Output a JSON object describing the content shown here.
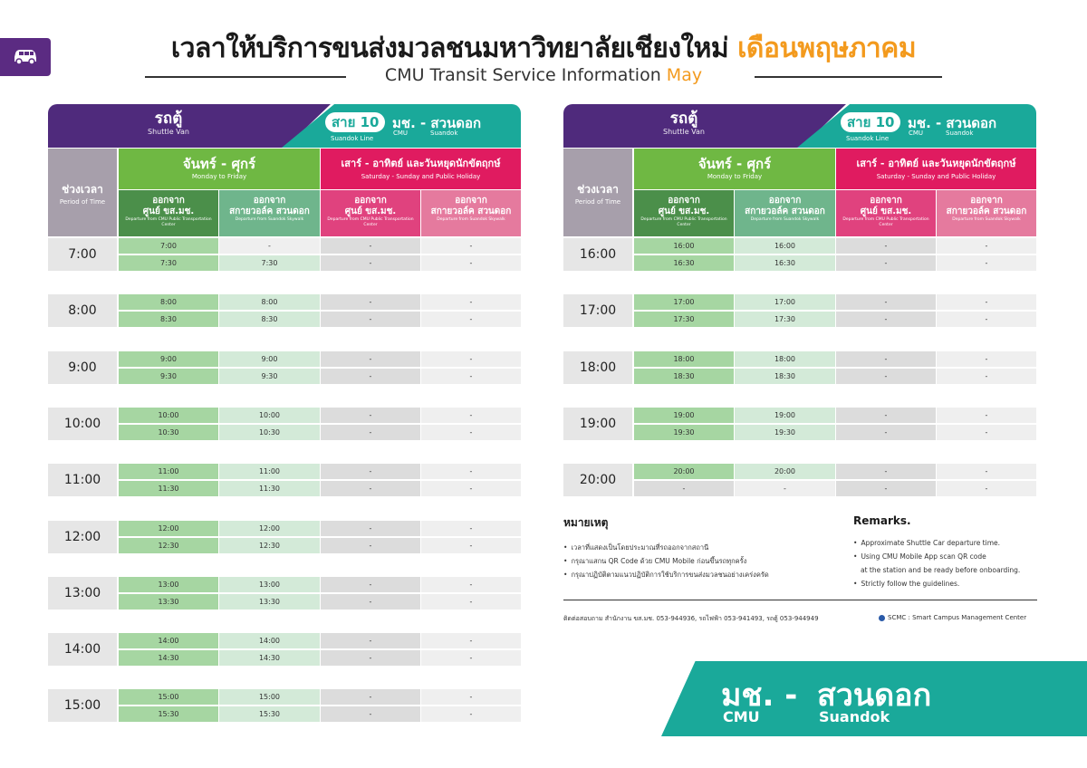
{
  "header": {
    "title": "เวลาให้บริการขนส่งมวลชนมหาวิทยาลัยเชียงใหม่",
    "title_month": "เดือนพฤษภาคม",
    "subtitle": "CMU Transit Service Information",
    "subtitle_month": "May"
  },
  "panel_header": {
    "van_th": "รถตู้",
    "van_en": "Shuttle Van",
    "line_badge": "สาย 10",
    "line_en": "Suandok Line",
    "route_th": "มช. - สวนดอก",
    "route_cmu": "CMU",
    "route_sd": "Suandok"
  },
  "columns": {
    "period_th": "ช่วงเวลา",
    "period_en": "Period of Time",
    "weekday_th": "จันทร์ - ศุกร์",
    "weekday_en": "Monday to Friday",
    "weekend_th": "เสาร์ - อาทิตย์ และวันหยุดนักขัตฤกษ์",
    "weekend_en": "Saturday - Sunday and Public Holiday",
    "from_cmu_th1": "ออกจาก",
    "from_cmu_th2": "ศูนย์ ขส.มช.",
    "from_cmu_en": "Departure from CMU Public Transportation Center",
    "from_sd_th1": "ออกจาก",
    "from_sd_th2": "สกายวอล์ค สวนดอก",
    "from_sd_en": "Departure from Suandok Skywalk"
  },
  "left_schedule": [
    {
      "hour": "7:00",
      "rows": [
        [
          "7:00",
          "-",
          "-",
          "-"
        ],
        [
          "7:30",
          "7:30",
          "-",
          "-"
        ]
      ]
    },
    {
      "hour": "8:00",
      "rows": [
        [
          "8:00",
          "8:00",
          "-",
          "-"
        ],
        [
          "8:30",
          "8:30",
          "-",
          "-"
        ]
      ]
    },
    {
      "hour": "9:00",
      "rows": [
        [
          "9:00",
          "9:00",
          "-",
          "-"
        ],
        [
          "9:30",
          "9:30",
          "-",
          "-"
        ]
      ]
    },
    {
      "hour": "10:00",
      "rows": [
        [
          "10:00",
          "10:00",
          "-",
          "-"
        ],
        [
          "10:30",
          "10:30",
          "-",
          "-"
        ]
      ]
    },
    {
      "hour": "11:00",
      "rows": [
        [
          "11:00",
          "11:00",
          "-",
          "-"
        ],
        [
          "11:30",
          "11:30",
          "-",
          "-"
        ]
      ]
    },
    {
      "hour": "12:00",
      "rows": [
        [
          "12:00",
          "12:00",
          "-",
          "-"
        ],
        [
          "12:30",
          "12:30",
          "-",
          "-"
        ]
      ]
    },
    {
      "hour": "13:00",
      "rows": [
        [
          "13:00",
          "13:00",
          "-",
          "-"
        ],
        [
          "13:30",
          "13:30",
          "-",
          "-"
        ]
      ]
    },
    {
      "hour": "14:00",
      "rows": [
        [
          "14:00",
          "14:00",
          "-",
          "-"
        ],
        [
          "14:30",
          "14:30",
          "-",
          "-"
        ]
      ]
    },
    {
      "hour": "15:00",
      "rows": [
        [
          "15:00",
          "15:00",
          "-",
          "-"
        ],
        [
          "15:30",
          "15:30",
          "-",
          "-"
        ]
      ]
    }
  ],
  "right_schedule": [
    {
      "hour": "16:00",
      "rows": [
        [
          "16:00",
          "16:00",
          "-",
          "-"
        ],
        [
          "16:30",
          "16:30",
          "-",
          "-"
        ]
      ]
    },
    {
      "hour": "17:00",
      "rows": [
        [
          "17:00",
          "17:00",
          "-",
          "-"
        ],
        [
          "17:30",
          "17:30",
          "-",
          "-"
        ]
      ]
    },
    {
      "hour": "18:00",
      "rows": [
        [
          "18:00",
          "18:00",
          "-",
          "-"
        ],
        [
          "18:30",
          "18:30",
          "-",
          "-"
        ]
      ]
    },
    {
      "hour": "19:00",
      "rows": [
        [
          "19:00",
          "19:00",
          "-",
          "-"
        ],
        [
          "19:30",
          "19:30",
          "-",
          "-"
        ]
      ]
    },
    {
      "hour": "20:00",
      "rows": [
        [
          "20:00",
          "20:00",
          "-",
          "-"
        ],
        [
          "-",
          "-",
          "-",
          "-"
        ]
      ]
    }
  ],
  "remarks_th": {
    "title": "หมายเหตุ",
    "items": [
      "เวลาที่แสดงเป็นโดยประมาณที่รถออกจากสถานี",
      "กรุณาแสกน QR Code ด้วย CMU Mobile ก่อนขึ้นรถทุกครั้ง",
      "กรุณาปฏิบัติตามแนวปฏิบัติการใช้บริการขนส่งมวลชนอย่างเคร่งครัด"
    ]
  },
  "remarks_en": {
    "title": "Remarks.",
    "items": [
      "Approximate Shuttle Car departure time.",
      "Using CMU Mobile App scan QR code",
      "at the station and be ready before onboarding.",
      "Strictly follow the guidelines."
    ]
  },
  "footer": {
    "contact": "ติดต่อสอบถาม   สำนักงาน ขส.มช. 053-944936, รถไฟฟ้า 053-941493, รถตู้ 053-944949",
    "scmc": "SCMC : Smart Campus Management Center"
  },
  "banner": {
    "th_cmu": "มช. -",
    "th_sd": "สวนดอก",
    "en_cmu": "CMU",
    "en_sd": "Suandok"
  },
  "colors": {
    "purple": "#4f2a7c",
    "teal": "#1aa99a",
    "green": "#6fb843",
    "pink": "#e01b60",
    "orange": "#f39a1d"
  },
  "icons": {
    "van": "van-icon"
  }
}
